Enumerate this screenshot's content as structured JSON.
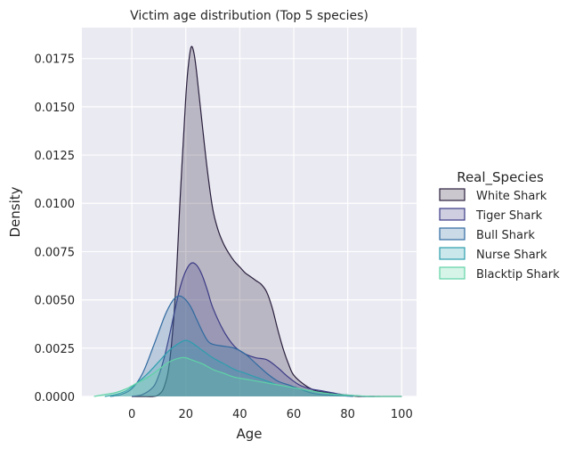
{
  "chart_data": {
    "type": "area",
    "title": "Victim age distribution (Top 5 species)",
    "xlabel": "Age",
    "ylabel": "Density",
    "xlim": [
      -18.5,
      105.5
    ],
    "ylim": [
      0,
      0.0191
    ],
    "xticks": [
      0,
      20,
      40,
      60,
      80,
      100
    ],
    "yticks": [
      0.0,
      0.0025,
      0.005,
      0.0075,
      0.01,
      0.0125,
      0.015,
      0.0175
    ],
    "ytick_labels": [
      "0.0000",
      "0.0025",
      "0.0050",
      "0.0075",
      "0.0100",
      "0.0125",
      "0.0150",
      "0.0175"
    ],
    "grid": true,
    "legend": {
      "title": "Real_Species",
      "position": "right"
    },
    "series": [
      {
        "name": "White Shark",
        "fill": "#2a1f3d",
        "line": "#2a1f3d",
        "x": [
          0,
          4,
          8,
          10,
          12,
          14,
          16,
          18,
          20,
          21,
          22,
          23,
          24,
          26,
          28,
          30,
          32,
          34,
          36,
          38,
          40,
          42,
          44,
          46,
          48,
          50,
          52,
          54,
          56,
          58,
          60,
          64,
          68,
          72,
          76,
          80,
          84,
          88,
          92,
          96,
          100
        ],
        "values": [
          0.0,
          0.0,
          0.0,
          0.0001,
          0.0005,
          0.0018,
          0.005,
          0.0105,
          0.0155,
          0.0172,
          0.0181,
          0.0178,
          0.0168,
          0.0142,
          0.0117,
          0.0097,
          0.0086,
          0.0079,
          0.0074,
          0.007,
          0.0067,
          0.0064,
          0.0062,
          0.006,
          0.0058,
          0.0054,
          0.0046,
          0.0035,
          0.0025,
          0.0017,
          0.0011,
          0.0006,
          0.0003,
          0.0002,
          0.0001,
          5e-05,
          0.0,
          0.0,
          0.0,
          0.0,
          0.0
        ]
      },
      {
        "name": "Tiger Shark",
        "fill": "#3b3a85",
        "line": "#3b3a85",
        "x": [
          0,
          4,
          8,
          10,
          12,
          14,
          16,
          18,
          20,
          22,
          24,
          26,
          28,
          30,
          34,
          38,
          42,
          46,
          50,
          54,
          58,
          62,
          66,
          70,
          74,
          78,
          82,
          86,
          90
        ],
        "values": [
          0.0,
          0.0001,
          0.0005,
          0.0011,
          0.002,
          0.0032,
          0.0045,
          0.0057,
          0.0065,
          0.0069,
          0.0068,
          0.0063,
          0.0055,
          0.0046,
          0.0034,
          0.0026,
          0.0022,
          0.002,
          0.0019,
          0.0015,
          0.001,
          0.0006,
          0.0004,
          0.0003,
          0.0002,
          0.0001,
          5e-05,
          0.0,
          0.0
        ]
      },
      {
        "name": "Bull Shark",
        "fill": "#2f6aa0",
        "line": "#2f6aa0",
        "x": [
          -8,
          -4,
          0,
          4,
          8,
          12,
          14,
          16,
          18,
          20,
          22,
          24,
          26,
          28,
          30,
          34,
          38,
          42,
          46,
          50,
          54,
          58,
          62,
          66,
          70,
          76,
          82
        ],
        "values": [
          0.0,
          0.0001,
          0.0004,
          0.0012,
          0.0026,
          0.0041,
          0.0047,
          0.0051,
          0.0052,
          0.005,
          0.0046,
          0.004,
          0.0034,
          0.0029,
          0.0027,
          0.0026,
          0.0025,
          0.0022,
          0.0017,
          0.0012,
          0.0008,
          0.0006,
          0.0004,
          0.0002,
          0.0001,
          5e-05,
          0.0
        ]
      },
      {
        "name": "Nurse Shark",
        "fill": "#2c9eae",
        "line": "#2c9eae",
        "x": [
          -10,
          -6,
          -2,
          2,
          6,
          10,
          14,
          18,
          20,
          22,
          26,
          30,
          34,
          38,
          42,
          46,
          50,
          54,
          58,
          62,
          66,
          70,
          76,
          82,
          88,
          92
        ],
        "values": [
          0.0,
          0.0001,
          0.0003,
          0.0007,
          0.0012,
          0.0018,
          0.0024,
          0.0028,
          0.0029,
          0.0028,
          0.0024,
          0.002,
          0.0017,
          0.0014,
          0.0012,
          0.001,
          0.0008,
          0.0006,
          0.0005,
          0.0004,
          0.0003,
          0.0002,
          0.0001,
          5e-05,
          0.0,
          0.0
        ]
      },
      {
        "name": "Blacktip Shark",
        "fill": "#5fd3a6",
        "line": "#5fd3a6",
        "x": [
          -14,
          -10,
          -6,
          -2,
          2,
          6,
          10,
          14,
          18,
          20,
          22,
          26,
          30,
          34,
          38,
          42,
          46,
          50,
          54,
          58,
          62,
          66,
          70,
          76,
          82,
          88,
          94,
          100
        ],
        "values": [
          0.0,
          0.0001,
          0.0002,
          0.0004,
          0.0007,
          0.001,
          0.0014,
          0.0018,
          0.002,
          0.002,
          0.0019,
          0.0017,
          0.0014,
          0.0012,
          0.001,
          0.0009,
          0.0008,
          0.0007,
          0.0006,
          0.0005,
          0.0004,
          0.0003,
          0.0002,
          0.0001,
          5e-05,
          0.0,
          0.0,
          0.0
        ]
      }
    ]
  }
}
